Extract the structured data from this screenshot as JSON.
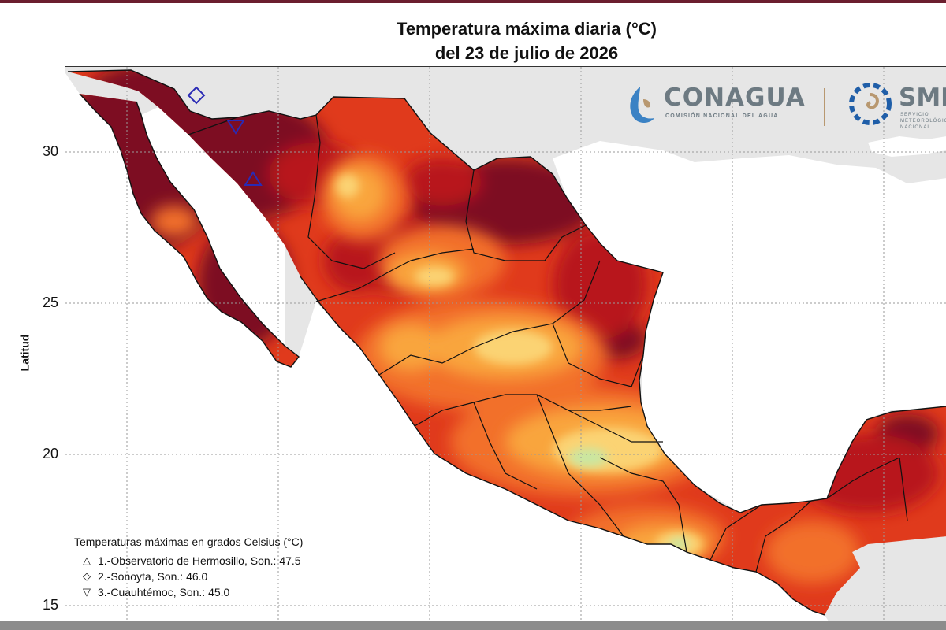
{
  "title": {
    "line1": "Temperatura máxima diaria (°C)",
    "line2": "del 23 de julio de 2026"
  },
  "axis": {
    "y_title": "Latitud",
    "y_ticks": [
      "30",
      "25",
      "20",
      "15"
    ]
  },
  "logos": {
    "conagua": "CONAGUA",
    "conagua_sub": "COMISIÓN NACIONAL DEL AGUA",
    "smn": "SMN",
    "smn_sub": "SERVICIO METEOROLÓGICO NACIONAL"
  },
  "legend": {
    "title": "Temperaturas máximas en grados Celsius (°C)",
    "items": [
      {
        "symbol": "△",
        "label": "1.-Observatorio de Hermosillo, Son.: 47.5"
      },
      {
        "symbol": "◇",
        "label": "2.-Sonoyta, Son.: 46.0"
      },
      {
        "symbol": "▽",
        "label": "3.-Cuauhtémoc, Son.: 45.0"
      }
    ]
  },
  "colors": {
    "land_background": "#e6e6e6",
    "ocean": "#ffffff",
    "temp_extreme": "#7d0a22",
    "temp_very_high": "#b8141c",
    "temp_high": "#e03a1c",
    "temp_warm": "#f2702a",
    "temp_mild": "#f9a53e",
    "temp_moderate": "#fbd373",
    "temp_cool": "#c9e7a2",
    "marker": "#2a2ab5"
  }
}
